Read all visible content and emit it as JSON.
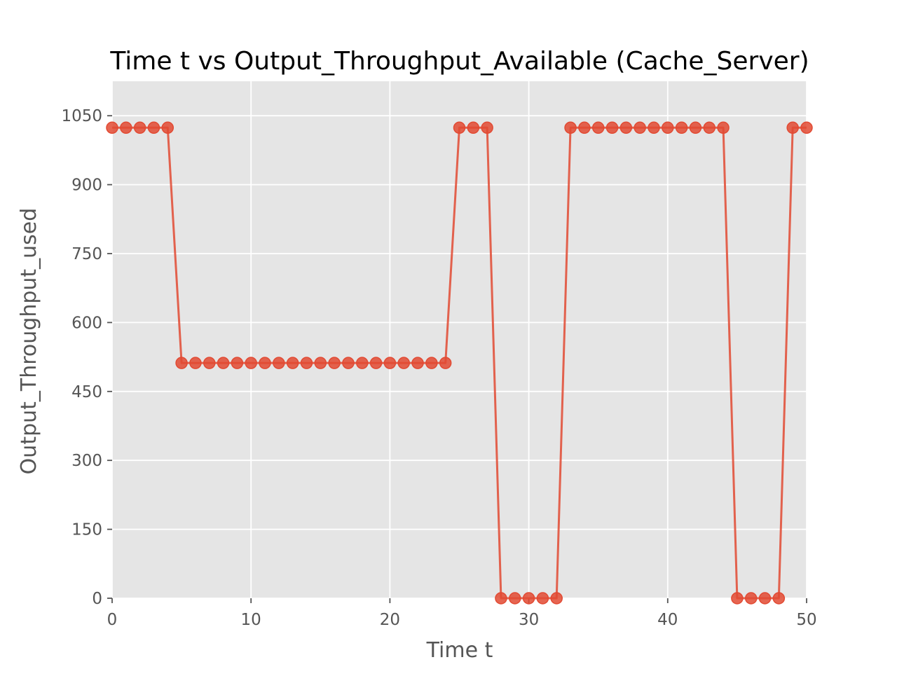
{
  "chart_data": {
    "type": "line",
    "title": "Time t vs Output_Throughput_Available (Cache_Server)",
    "xlabel": "Time t",
    "ylabel": "Output_Throughput_used",
    "xlim": [
      0,
      50
    ],
    "ylim": [
      0,
      1125
    ],
    "xticks": [
      0,
      10,
      20,
      30,
      40,
      50
    ],
    "yticks": [
      0,
      150,
      300,
      450,
      600,
      750,
      900,
      1050
    ],
    "grid": true,
    "style": "ggplot",
    "colors": {
      "series": "#E24A33",
      "background": "#E5E5E5",
      "grid": "#FFFFFF",
      "text": "#555555"
    },
    "series": [
      {
        "marker": "circle",
        "x": [
          0,
          1,
          2,
          3,
          4,
          5,
          6,
          7,
          8,
          9,
          10,
          11,
          12,
          13,
          14,
          15,
          16,
          17,
          18,
          19,
          20,
          21,
          22,
          23,
          24,
          25,
          26,
          27,
          28,
          29,
          30,
          31,
          32,
          33,
          34,
          35,
          36,
          37,
          38,
          39,
          40,
          41,
          42,
          43,
          44,
          45,
          46,
          47,
          48,
          49,
          50
        ],
        "values": [
          1024,
          1024,
          1024,
          1024,
          1024,
          512,
          512,
          512,
          512,
          512,
          512,
          512,
          512,
          512,
          512,
          512,
          512,
          512,
          512,
          512,
          512,
          512,
          512,
          512,
          512,
          1024,
          1024,
          1024,
          0,
          0,
          0,
          0,
          0,
          1024,
          1024,
          1024,
          1024,
          1024,
          1024,
          1024,
          1024,
          1024,
          1024,
          1024,
          1024,
          0,
          0,
          0,
          0,
          1024,
          1024
        ]
      }
    ]
  }
}
